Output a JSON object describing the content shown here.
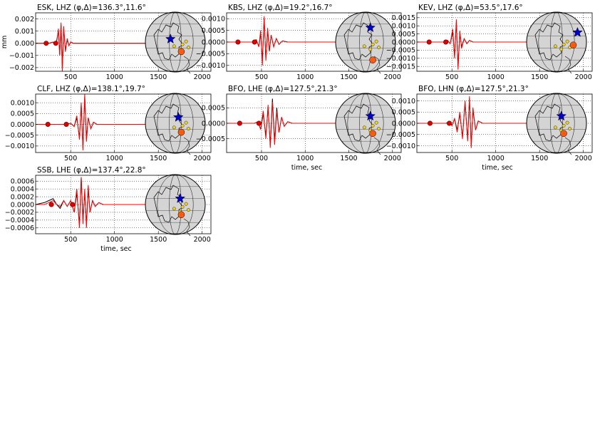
{
  "chart_data": [
    {
      "type": "line",
      "title": "ESK, LHZ (φ,Δ)=136.3°,11.6°",
      "xlabel": "",
      "ylabel": "mm",
      "xlim": [
        100,
        2100
      ],
      "ylim": [
        -0.0023,
        0.0025
      ],
      "xticks": [
        500,
        1000,
        1500,
        2000
      ],
      "yticks": [
        -0.002,
        -0.001,
        0.0,
        0.001,
        0.002
      ],
      "ytick_labels": [
        "−0.002",
        "−0.001",
        "0.000",
        "0.001",
        "0.002"
      ],
      "grid": true,
      "markers_x": [
        220,
        330
      ],
      "map_points": [
        [
          0.42,
          0.45
        ],
        [
          0.6,
          0.66
        ]
      ],
      "series": [
        {
          "color": "#000000",
          "x": [
            100,
            250,
            300,
            330,
            345,
            360,
            375,
            390,
            405,
            420,
            440,
            460,
            480,
            500,
            530,
            570,
            620,
            700,
            1500
          ],
          "y": [
            0,
            0,
            0.0001,
            -0.0001,
            0.0004,
            0.001,
            -0.0009,
            0.0015,
            -0.0021,
            0.0012,
            -0.0006,
            0.0003,
            -0.0002,
            0.0001,
            0,
            0,
            0,
            0,
            0
          ]
        },
        {
          "color": "#ff0000",
          "x": [
            100,
            250,
            300,
            330,
            345,
            360,
            375,
            390,
            405,
            420,
            440,
            460,
            480,
            500,
            530,
            570,
            620,
            700,
            1500
          ],
          "y": [
            0,
            0,
            0.0001,
            -0.0001,
            0.0003,
            0.0012,
            -0.001,
            0.0017,
            -0.0023,
            0.0014,
            -0.0007,
            0.0004,
            -0.0002,
            0.0001,
            0,
            0,
            0,
            0,
            0
          ]
        }
      ]
    },
    {
      "type": "line",
      "title": "KBS, LHZ (φ,Δ)=19.2°,16.7°",
      "xlabel": "",
      "ylabel": "",
      "xlim": [
        100,
        2100
      ],
      "ylim": [
        -0.00125,
        0.00125
      ],
      "xticks": [
        500,
        1000,
        1500,
        2000
      ],
      "yticks": [
        -0.001,
        -0.0005,
        0.0,
        0.0005,
        0.001
      ],
      "ytick_labels": [
        "−0.0010",
        "−0.0005",
        "0.0000",
        "0.0005",
        "0.0010"
      ],
      "grid": true,
      "markers_x": [
        230,
        420
      ],
      "map_points": [
        [
          0.58,
          0.26
        ],
        [
          0.62,
          0.8
        ]
      ],
      "series": [
        {
          "color": "#000000",
          "x": [
            100,
            300,
            400,
            440,
            470,
            490,
            510,
            530,
            550,
            570,
            590,
            610,
            640,
            670,
            700,
            740,
            800,
            900,
            1000,
            1100,
            1400
          ],
          "y": [
            0,
            0,
            0,
            0.0001,
            -0.0002,
            0.0004,
            -0.0008,
            0.001,
            -0.0007,
            0.0005,
            -0.0004,
            0.0003,
            -0.0002,
            0.00015,
            -0.0001,
            5e-05,
            0,
            0,
            0,
            0,
            0
          ]
        },
        {
          "color": "#ff0000",
          "x": [
            100,
            300,
            400,
            440,
            470,
            490,
            510,
            530,
            550,
            570,
            590,
            610,
            640,
            670,
            700,
            740,
            800,
            900,
            1000,
            1100,
            1400
          ],
          "y": [
            0,
            0,
            0,
            0.0001,
            -0.0002,
            0.0005,
            -0.001,
            0.0011,
            -0.0008,
            0.0006,
            -0.0004,
            0.0003,
            -0.0002,
            0.00015,
            -0.0001,
            5e-05,
            0,
            0,
            0,
            0,
            0
          ]
        }
      ]
    },
    {
      "type": "line",
      "title": "KEV, LHZ (φ,Δ)=53.5°,17.6°",
      "xlabel": "",
      "ylabel": "",
      "xlim": [
        100,
        2100
      ],
      "ylim": [
        -0.0018,
        0.0018
      ],
      "xticks": [
        500,
        1000,
        1500,
        2000
      ],
      "yticks": [
        -0.0015,
        -0.001,
        -0.0005,
        0.0,
        0.0005,
        0.001,
        0.0015
      ],
      "ytick_labels": [
        "−0.0015",
        "−0.0010",
        "−0.0005",
        "0.0000",
        "0.0005",
        "0.0010",
        "0.0015"
      ],
      "grid": true,
      "markers_x": [
        240,
        430
      ],
      "map_points": [
        [
          0.85,
          0.34
        ],
        [
          0.78,
          0.55
        ]
      ],
      "series": [
        {
          "color": "#000000",
          "x": [
            100,
            300,
            420,
            450,
            480,
            510,
            530,
            550,
            570,
            590,
            610,
            640,
            670,
            700,
            740,
            800,
            900,
            1000,
            1400
          ],
          "y": [
            0,
            0,
            0,
            0.0001,
            -0.0001,
            0.0006,
            -0.0009,
            0.0012,
            -0.0015,
            0.0006,
            -0.0003,
            0.0002,
            -0.0001,
            0.0001,
            0,
            0,
            0,
            0,
            0
          ]
        },
        {
          "color": "#ff0000",
          "x": [
            100,
            300,
            420,
            450,
            480,
            510,
            530,
            550,
            570,
            590,
            610,
            640,
            670,
            700,
            740,
            800,
            900,
            1000,
            1400
          ],
          "y": [
            0,
            0,
            0,
            0.0001,
            -0.0001,
            0.0008,
            -0.001,
            0.0014,
            -0.0017,
            0.0007,
            -0.0004,
            0.0002,
            -0.0001,
            0.0001,
            0,
            0,
            0,
            0,
            0
          ]
        }
      ]
    },
    {
      "type": "line",
      "title": "CLF, LHZ (φ,Δ)=138.1°,19.7°",
      "xlabel": "",
      "ylabel": "",
      "xlim": [
        100,
        2100
      ],
      "ylim": [
        -0.0013,
        0.0014
      ],
      "xticks": [
        500,
        1000,
        1500,
        2000
      ],
      "yticks": [
        -0.001,
        -0.0005,
        0.0,
        0.0005,
        0.001
      ],
      "ytick_labels": [
        "−0.0010",
        "−0.0005",
        "0.0000",
        "0.0005",
        "0.0010"
      ],
      "grid": true,
      "markers_x": [
        240,
        450
      ],
      "map_points": [
        [
          0.55,
          0.4
        ],
        [
          0.6,
          0.65
        ]
      ],
      "series": [
        {
          "color": "#000000",
          "x": [
            100,
            300,
            450,
            500,
            540,
            570,
            600,
            620,
            640,
            660,
            680,
            700,
            730,
            760,
            800,
            900,
            1000,
            1500
          ],
          "y": [
            0,
            0,
            0,
            5e-05,
            -0.0001,
            0.0003,
            -0.0006,
            0.0009,
            -0.0011,
            0.0013,
            -0.0007,
            0.0003,
            -0.0002,
            0.0001,
            0,
            0,
            0,
            0
          ]
        },
        {
          "color": "#ff0000",
          "x": [
            100,
            300,
            450,
            500,
            540,
            570,
            600,
            620,
            640,
            660,
            680,
            700,
            730,
            760,
            800,
            900,
            1000,
            1500
          ],
          "y": [
            0,
            0,
            0,
            5e-05,
            -0.0001,
            0.0004,
            -0.0007,
            0.001,
            -0.0012,
            0.0014,
            -0.0008,
            0.0003,
            -0.0002,
            0.0001,
            0,
            0,
            0,
            0
          ]
        }
      ]
    },
    {
      "type": "line",
      "title": "BFO, LHE (φ,Δ)=127.5°,21.3°",
      "xlabel": "time, sec",
      "ylabel": "",
      "xlim": [
        100,
        2100
      ],
      "ylim": [
        -0.00095,
        0.00095
      ],
      "xticks": [
        500,
        1000,
        1500,
        2000
      ],
      "yticks": [
        -0.0005,
        0.0,
        0.0005
      ],
      "ytick_labels": [
        "−0.0005",
        "0.0000",
        "0.0005"
      ],
      "grid": true,
      "markers_x": [
        250,
        470
      ],
      "map_points": [
        [
          0.58,
          0.38
        ],
        [
          0.62,
          0.67
        ]
      ],
      "series": [
        {
          "color": "#000000",
          "x": [
            100,
            300,
            420,
            460,
            490,
            520,
            550,
            575,
            600,
            625,
            650,
            675,
            700,
            730,
            760,
            800,
            850,
            900,
            1000,
            1500
          ],
          "y": [
            0,
            0,
            0,
            5e-05,
            -0.0002,
            0.0003,
            -0.0004,
            0.0005,
            -0.0007,
            0.0008,
            -0.0006,
            0.0005,
            -0.0003,
            0.0002,
            -0.0001,
            5e-05,
            0,
            0,
            0,
            0
          ]
        },
        {
          "color": "#ff0000",
          "x": [
            100,
            300,
            420,
            460,
            490,
            520,
            550,
            575,
            600,
            625,
            650,
            675,
            700,
            730,
            760,
            800,
            850,
            900,
            1000,
            1500
          ],
          "y": [
            0,
            0,
            0,
            5e-05,
            -0.0002,
            0.0004,
            -0.0005,
            0.0006,
            -0.0008,
            0.0007,
            -0.0007,
            0.0004,
            -0.0003,
            0.0002,
            -0.0001,
            5e-05,
            0,
            0,
            0,
            0
          ]
        }
      ]
    },
    {
      "type": "line",
      "title": "BFO, LHN (φ,Δ)=127.5°,21.3°",
      "xlabel": "time, sec",
      "ylabel": "",
      "xlim": [
        100,
        2100
      ],
      "ylim": [
        -0.0013,
        0.0013
      ],
      "xticks": [
        500,
        1000,
        1500,
        2000
      ],
      "yticks": [
        -0.001,
        -0.0005,
        0.0,
        0.0005,
        0.001
      ],
      "ytick_labels": [
        "−0.0010",
        "−0.0005",
        "0.0000",
        "0.0005",
        "0.0010"
      ],
      "grid": true,
      "markers_x": [
        250,
        470
      ],
      "map_points": [
        [
          0.58,
          0.38
        ],
        [
          0.62,
          0.67
        ]
      ],
      "series": [
        {
          "color": "#000000",
          "x": [
            100,
            300,
            430,
            470,
            500,
            530,
            560,
            590,
            620,
            650,
            680,
            700,
            720,
            740,
            770,
            800,
            850,
            900,
            1000,
            1500
          ],
          "y": [
            0,
            0,
            0,
            5e-05,
            -0.0001,
            0.0002,
            -0.0003,
            0.0004,
            -0.0006,
            0.0009,
            -0.0007,
            0.0011,
            -0.001,
            0.0006,
            -0.0003,
            0.0001,
            0,
            0,
            0,
            0
          ]
        },
        {
          "color": "#ff0000",
          "x": [
            100,
            300,
            430,
            470,
            500,
            530,
            560,
            590,
            620,
            650,
            680,
            700,
            720,
            740,
            770,
            800,
            850,
            900,
            1000,
            1500
          ],
          "y": [
            0,
            0,
            0,
            5e-05,
            -0.0001,
            0.0002,
            -0.0004,
            0.0005,
            -0.0007,
            0.001,
            -0.0008,
            0.0012,
            -0.0011,
            0.0007,
            -0.0003,
            0.0001,
            0,
            0,
            0,
            0
          ]
        }
      ]
    },
    {
      "type": "line",
      "title": "SSB, LHE (φ,Δ)=137.4°,22.8°",
      "xlabel": "time, sec",
      "ylabel": "",
      "xlim": [
        100,
        2100
      ],
      "ylim": [
        -0.00075,
        0.00075
      ],
      "xticks": [
        500,
        1000,
        1500,
        2000
      ],
      "yticks": [
        -0.0006,
        -0.0004,
        -0.0002,
        0.0,
        0.0002,
        0.0004,
        0.0006
      ],
      "ytick_labels": [
        "−0.0006",
        "−0.0004",
        "−0.0002",
        "0.0000",
        "0.0002",
        "0.0004",
        "0.0006"
      ],
      "grid": true,
      "markers_x": [
        280,
        520
      ],
      "map_points": [
        [
          0.58,
          0.4
        ],
        [
          0.6,
          0.67
        ]
      ],
      "series": [
        {
          "color": "#000000",
          "x": [
            100,
            200,
            250,
            300,
            340,
            380,
            420,
            460,
            500,
            540,
            570,
            600,
            620,
            640,
            660,
            680,
            700,
            720,
            750,
            780,
            820,
            870,
            920,
            1000,
            1100,
            1500
          ],
          "y": [
            0,
            5e-05,
            0.0001,
            0.00015,
            0.0,
            -0.0001,
            0.0001,
            -5e-05,
            0.0001,
            -0.0002,
            0.0003,
            -0.0005,
            0.0007,
            -0.0004,
            0.0003,
            -0.0005,
            0.0004,
            -0.0002,
            0.0001,
            -5e-05,
            5e-05,
            0,
            0,
            0,
            0,
            0
          ]
        },
        {
          "color": "#ff0000",
          "x": [
            100,
            200,
            250,
            300,
            340,
            380,
            420,
            460,
            500,
            540,
            570,
            600,
            620,
            640,
            660,
            680,
            700,
            720,
            750,
            780,
            820,
            870,
            920,
            1000,
            1100,
            1500
          ],
          "y": [
            0,
            0,
            5e-05,
            0.0001,
            0.0,
            -5e-05,
            0.0001,
            -5e-05,
            0.0001,
            -0.0002,
            0.0004,
            -0.0006,
            0.0007,
            -0.0005,
            0.0004,
            -0.0006,
            0.0005,
            -0.0002,
            0.0001,
            -5e-05,
            5e-05,
            0,
            0,
            0,
            0,
            0
          ]
        }
      ]
    }
  ]
}
